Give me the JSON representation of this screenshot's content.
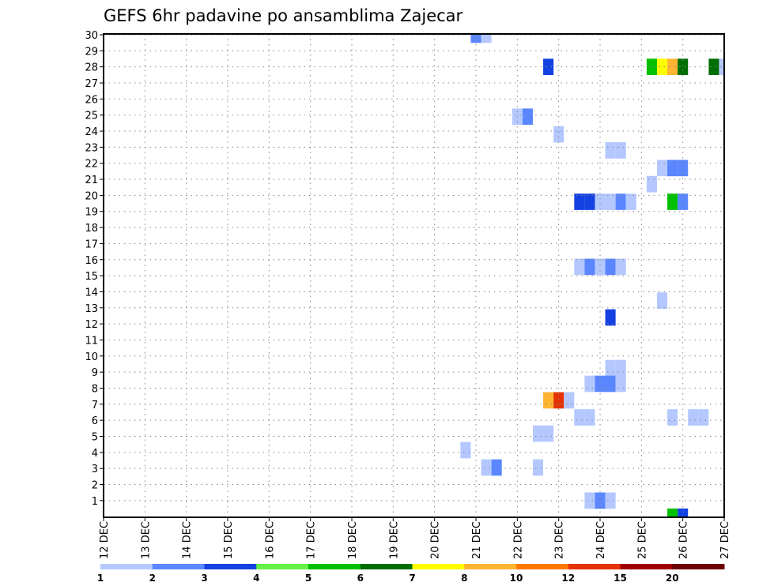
{
  "chart_data": {
    "type": "heatmap",
    "title": "GEFS 6hr padavine po ansamblima Zajecar",
    "xlabel": "",
    "ylabel": "",
    "x_unit": "6-hour steps from 12 DEC 00Z",
    "x_range": [
      0,
      60
    ],
    "y_range": [
      0,
      30
    ],
    "x_tick_labels": [
      "12 DEC",
      "13 DEC",
      "14 DEC",
      "15 DEC",
      "16 DEC",
      "17 DEC",
      "18 DEC",
      "19 DEC",
      "20 DEC",
      "21 DEC",
      "22 DEC",
      "23 DEC",
      "24 DEC",
      "25 DEC",
      "26 DEC",
      "27 DEC"
    ],
    "y_tick_labels": [
      "1",
      "2",
      "3",
      "4",
      "5",
      "6",
      "7",
      "8",
      "9",
      "10",
      "11",
      "12",
      "13",
      "14",
      "15",
      "16",
      "17",
      "18",
      "19",
      "20",
      "21",
      "22",
      "23",
      "24",
      "25",
      "26",
      "27",
      "28",
      "29",
      "30"
    ],
    "grid": true,
    "legend": {
      "placement": "bottom",
      "labels": [
        "1",
        "2",
        "3",
        "4",
        "5",
        "6",
        "7",
        "8",
        "10",
        "12",
        "15",
        "20"
      ],
      "colors": [
        "#b4c8ff",
        "#5a87ff",
        "#1441e1",
        "#64f046",
        "#00c000",
        "#006e00",
        "#ffff00",
        "#ffb432",
        "#ff7800",
        "#e63200",
        "#a00000",
        "#6e0000"
      ]
    },
    "cells": [
      {
        "member": 30,
        "steps": [
          36
        ],
        "bin": 1
      },
      {
        "member": 30,
        "steps": [
          37
        ],
        "bin": 0
      },
      {
        "member": 28,
        "steps": [
          43
        ],
        "bin": 2
      },
      {
        "member": 28,
        "steps": [
          53
        ],
        "bin": 4
      },
      {
        "member": 28,
        "steps": [
          54
        ],
        "bin": 6
      },
      {
        "member": 28,
        "steps": [
          55
        ],
        "bin": 7
      },
      {
        "member": 28,
        "steps": [
          56
        ],
        "bin": 5
      },
      {
        "member": 28,
        "steps": [
          59
        ],
        "bin": 5
      },
      {
        "member": 28,
        "steps": [
          60
        ],
        "bin": 0
      },
      {
        "member": 24.9,
        "steps": [
          40
        ],
        "bin": 0
      },
      {
        "member": 24.9,
        "steps": [
          41
        ],
        "bin": 1
      },
      {
        "member": 23.8,
        "steps": [
          44
        ],
        "bin": 0
      },
      {
        "member": 22.8,
        "steps": [
          49,
          50
        ],
        "bin": 0
      },
      {
        "member": 21.7,
        "steps": [
          54
        ],
        "bin": 0
      },
      {
        "member": 21.7,
        "steps": [
          55,
          56
        ],
        "bin": 1
      },
      {
        "member": 20.7,
        "steps": [
          53
        ],
        "bin": 0
      },
      {
        "member": 19.6,
        "steps": [
          46,
          47
        ],
        "bin": 2
      },
      {
        "member": 19.6,
        "steps": [
          48,
          49
        ],
        "bin": 0
      },
      {
        "member": 19.6,
        "steps": [
          50
        ],
        "bin": 1
      },
      {
        "member": 19.6,
        "steps": [
          51
        ],
        "bin": 0
      },
      {
        "member": 19.6,
        "steps": [
          55
        ],
        "bin": 4
      },
      {
        "member": 19.6,
        "steps": [
          56
        ],
        "bin": 1
      },
      {
        "member": 15.55,
        "steps": [
          46
        ],
        "bin": 0
      },
      {
        "member": 15.55,
        "steps": [
          47
        ],
        "bin": 1
      },
      {
        "member": 15.55,
        "steps": [
          48
        ],
        "bin": 0
      },
      {
        "member": 15.55,
        "steps": [
          49
        ],
        "bin": 1
      },
      {
        "member": 15.55,
        "steps": [
          50
        ],
        "bin": 0
      },
      {
        "member": 13.45,
        "steps": [
          54
        ],
        "bin": 0
      },
      {
        "member": 12.4,
        "steps": [
          49
        ],
        "bin": 2
      },
      {
        "member": 9.25,
        "steps": [
          49,
          50
        ],
        "bin": 0
      },
      {
        "member": 8.27,
        "steps": [
          47
        ],
        "bin": 0
      },
      {
        "member": 8.27,
        "steps": [
          48,
          49
        ],
        "bin": 1
      },
      {
        "member": 8.27,
        "steps": [
          50
        ],
        "bin": 0
      },
      {
        "member": 7.24,
        "steps": [
          43
        ],
        "bin": 7
      },
      {
        "member": 7.24,
        "steps": [
          44
        ],
        "bin": 9
      },
      {
        "member": 7.24,
        "steps": [
          45
        ],
        "bin": 0
      },
      {
        "member": 6.18,
        "steps": [
          46,
          47
        ],
        "bin": 0
      },
      {
        "member": 6.18,
        "steps": [
          55
        ],
        "bin": 0
      },
      {
        "member": 6.18,
        "steps": [
          57,
          58
        ],
        "bin": 0
      },
      {
        "member": 5.17,
        "steps": [
          42,
          43
        ],
        "bin": 0
      },
      {
        "member": 4.14,
        "steps": [
          35
        ],
        "bin": 0
      },
      {
        "member": 3.06,
        "steps": [
          37
        ],
        "bin": 0
      },
      {
        "member": 3.06,
        "steps": [
          38
        ],
        "bin": 1
      },
      {
        "member": 3.06,
        "steps": [
          42
        ],
        "bin": 0
      },
      {
        "member": 1,
        "steps": [
          47
        ],
        "bin": 0
      },
      {
        "member": 1,
        "steps": [
          48
        ],
        "bin": 1
      },
      {
        "member": 1,
        "steps": [
          49
        ],
        "bin": 0
      },
      {
        "member": 0,
        "steps": [
          55
        ],
        "bin": 4
      },
      {
        "member": 0,
        "steps": [
          56
        ],
        "bin": 2
      }
    ]
  }
}
